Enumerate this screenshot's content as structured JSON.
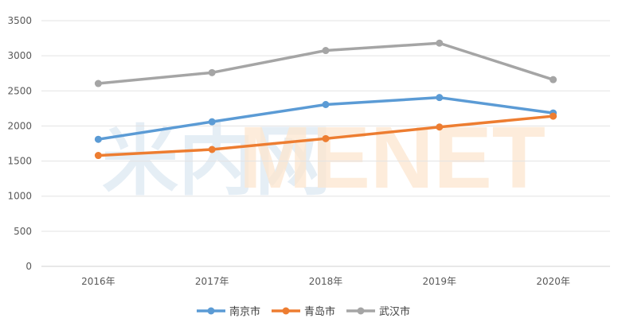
{
  "watermark": {
    "cn": "米内网",
    "en": "MENET"
  },
  "chart_data": {
    "type": "line",
    "categories": [
      "2016年",
      "2017年",
      "2018年",
      "2019年",
      "2020年"
    ],
    "ylim": [
      0,
      3500
    ],
    "yticks": [
      0,
      500,
      1000,
      1500,
      2000,
      2500,
      3000,
      3500
    ],
    "grid": true,
    "legend_position": "bottom",
    "title": "",
    "xlabel": "",
    "ylabel": "",
    "series": [
      {
        "name": "南京市",
        "color": "#5b9bd5",
        "values": [
          1810,
          2060,
          2305,
          2405,
          2185
        ]
      },
      {
        "name": "青岛市",
        "color": "#ed7d31",
        "values": [
          1580,
          1665,
          1820,
          1985,
          2140
        ]
      },
      {
        "name": "武汉市",
        "color": "#a5a5a5",
        "values": [
          2605,
          2760,
          3075,
          3180,
          2660
        ]
      }
    ]
  }
}
